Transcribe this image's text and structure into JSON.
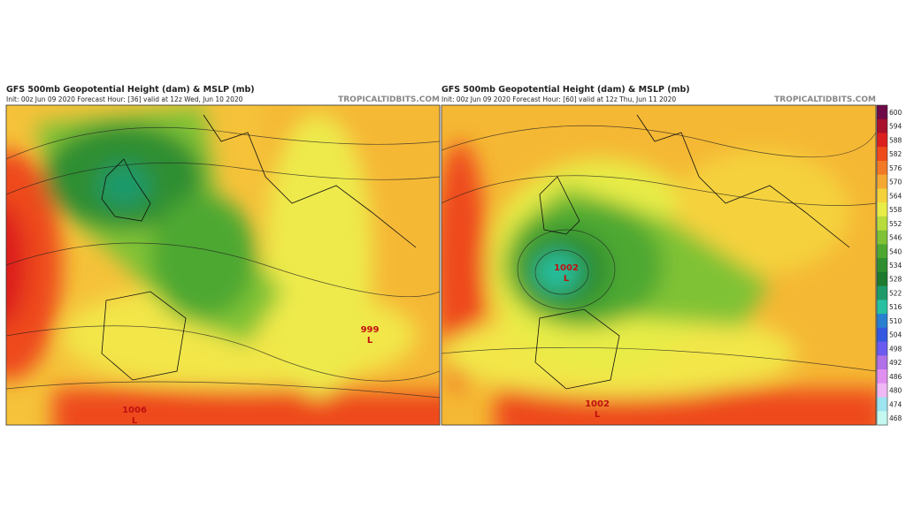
{
  "panels": [
    {
      "title": "GFS 500mb Geopotential Height (dam) & MSLP (mb)",
      "subtitle": "Init: 00z Jun 09 2020   Forecast Hour: [36]   valid at 12z Wed, Jun 10 2020",
      "watermark": "TROPICALTIDBITS.COM",
      "annotations": [
        "999",
        "L",
        "1006",
        "L"
      ]
    },
    {
      "title": "GFS 500mb Geopotential Height (dam) & MSLP (mb)",
      "subtitle": "Init: 00z Jun 09 2020   Forecast Hour: [60]   valid at 12z Thu, Jun 11 2020",
      "watermark": "TROPICALTIDBITS.COM",
      "annotations": [
        "1002",
        "L",
        "1002",
        "L"
      ]
    }
  ],
  "colorbar": {
    "levels": [
      600,
      594,
      588,
      582,
      576,
      570,
      564,
      558,
      552,
      546,
      540,
      534,
      528,
      522,
      516,
      510,
      504,
      498,
      492,
      486,
      480,
      474,
      468
    ],
    "colors": [
      "#6e0a48",
      "#a8102c",
      "#dc1e1e",
      "#ee4a1c",
      "#f27a26",
      "#f5a832",
      "#f5d23c",
      "#e8ec46",
      "#b8dc3c",
      "#80c236",
      "#4ea830",
      "#2e8e30",
      "#1e7a2e",
      "#1e9a6a",
      "#28c0a0",
      "#2a80d0",
      "#3458e0",
      "#6a5af0",
      "#b070e8",
      "#e08ef0",
      "#f0b8f4",
      "#9ce4f0",
      "#c4f8f0"
    ]
  }
}
